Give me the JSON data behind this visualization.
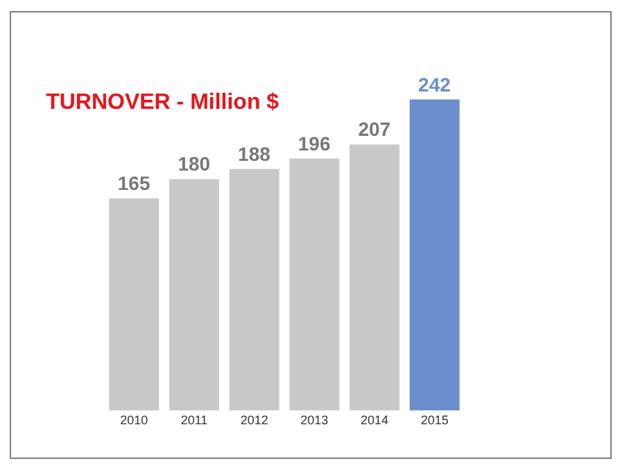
{
  "chart_data": {
    "type": "bar",
    "title": "TURNOVER - Million $",
    "categories": [
      "2010",
      "2011",
      "2012",
      "2013",
      "2014",
      "2015"
    ],
    "values": [
      165,
      180,
      188,
      196,
      207,
      242
    ],
    "colors": [
      "#c8c8c8",
      "#c8c8c8",
      "#c8c8c8",
      "#c8c8c8",
      "#c8c8c8",
      "#6a8ecd"
    ],
    "data_labels": true,
    "tick_labels": "x",
    "grid": false,
    "legend": false
  }
}
